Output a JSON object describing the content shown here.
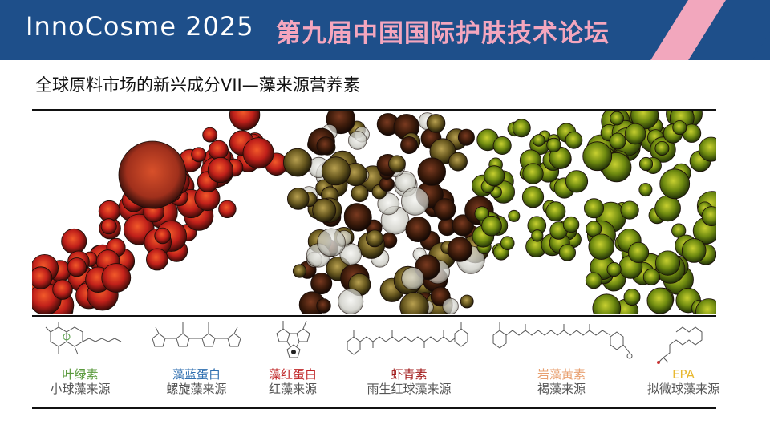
{
  "header": {
    "brand": "InnoCosme 2025",
    "forum": "第九届中国国际护肤技术论坛"
  },
  "slide_title": "全球原料市场的新兴成分VII—藻来源营养素",
  "compounds": [
    {
      "name": "叶绿素",
      "source": "小球藻来源",
      "color": "#5a9a3c"
    },
    {
      "name": "藻蓝蛋白",
      "source": "螺旋藻来源",
      "color": "#2f6fb0"
    },
    {
      "name": "藻红蛋白",
      "source": "红藻来源",
      "color": "#c0282a"
    },
    {
      "name": "虾青素",
      "source": "雨生红球藻来源",
      "color": "#a01818"
    },
    {
      "name": "岩藻黄素",
      "source": "褐藻来源",
      "color": "#e8a070"
    },
    {
      "name": "EPA",
      "source": "拟微球藻来源",
      "color": "#e8b830"
    }
  ],
  "colors": {
    "banner": "#1e4f8a",
    "accent_pink": "#f4a6be"
  }
}
